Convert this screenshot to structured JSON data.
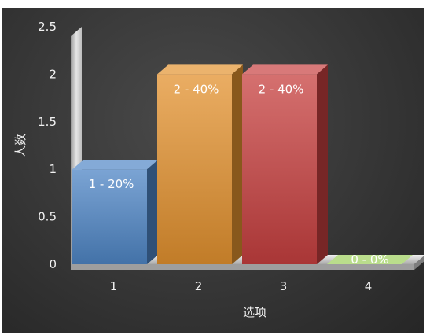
{
  "chart_data": {
    "type": "bar",
    "categories": [
      "1",
      "2",
      "3",
      "4"
    ],
    "values": [
      1,
      2,
      2,
      0
    ],
    "data_labels": [
      "1 - 20%",
      "2 - 40%",
      "2 - 40%",
      "0 - 0%"
    ],
    "bar_colors": [
      "#4f86c6",
      "#e3922f",
      "#c7403f",
      "#9ccf5a"
    ],
    "xlabel": "选项",
    "ylabel": "人数",
    "ylim": [
      0,
      2.5
    ],
    "yticks": [
      "0",
      "0.5",
      "1",
      "1.5",
      "2",
      "2.5"
    ],
    "grid": false,
    "background": "#3a3a3a",
    "style": "3d"
  }
}
